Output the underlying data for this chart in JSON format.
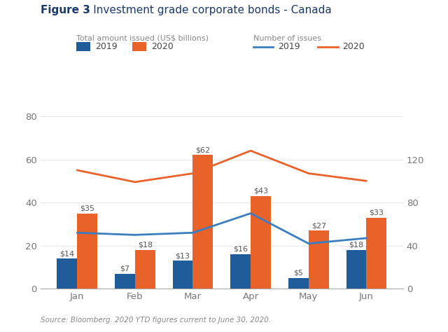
{
  "title_bold": "Figure 3",
  "title_rest": " - Investment grade corporate bonds - Canada",
  "months": [
    "Jan",
    "Feb",
    "Mar",
    "Apr",
    "May",
    "Jun"
  ],
  "bar_2019": [
    14,
    7,
    13,
    16,
    5,
    18
  ],
  "bar_2020": [
    35,
    18,
    62,
    43,
    27,
    33
  ],
  "line_2019": [
    52,
    50,
    52,
    70,
    42,
    47
  ],
  "line_2020": [
    110,
    99,
    107,
    128,
    107,
    100
  ],
  "color_2019_bar": "#1F5C99",
  "color_2020_bar": "#E8622A",
  "color_2019_line": "#3A7EBF",
  "color_2020_line": "#E8622A",
  "left_ylim": [
    0,
    80
  ],
  "right_ylim": [
    0,
    160
  ],
  "left_yticks": [
    0,
    20,
    40,
    60,
    80
  ],
  "right_yticks": [
    0,
    40,
    80,
    120
  ],
  "legend_bar_title": "Total amount issued (US$ billions)",
  "legend_line_title": "Number of issues",
  "source_text": "Source: Bloomberg. 2020 YTD figures current to June 30, 2020.",
  "background_color": "#FFFFFF",
  "title_color": "#1B3A6B",
  "axis_color": "#AAAAAA",
  "tick_label_color": "#777777",
  "label_color": "#555555",
  "bar_width": 0.35,
  "grid_color": "#E8E8E8"
}
